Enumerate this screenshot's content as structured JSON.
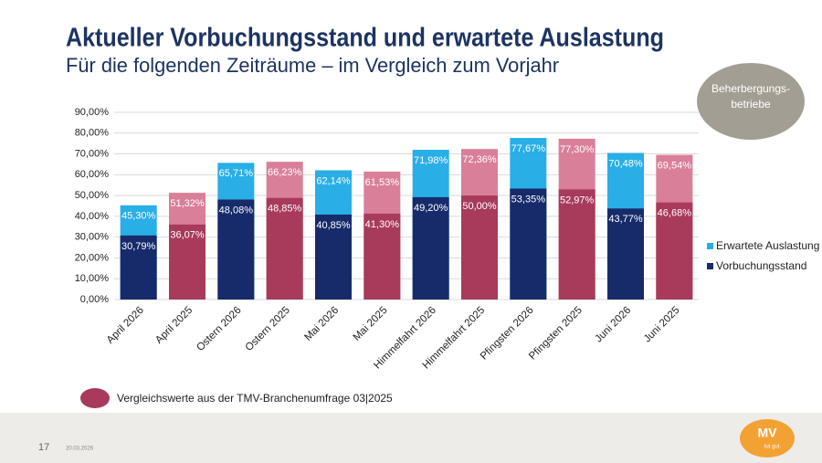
{
  "chart_data": {
    "type": "bar",
    "title": "Aktueller Vorbuchungsstand und erwartete Auslastung",
    "subtitle": "Für die folgenden Zeiträume – im Vergleich zum Vorjahr",
    "categories": [
      "April 2026",
      "April 2025",
      "Ostern 2026",
      "Ostern 2025",
      "Mai 2026",
      "Mai 2025",
      "Himmelfahrt 2026",
      "Himmelfahrt 2025",
      "Pfingsten 2026",
      "Pfingsten 2025",
      "Juni 2026",
      "Juni 2025"
    ],
    "series": [
      {
        "name": "Erwartete Auslastung",
        "color": "#29aee6",
        "colors": [
          "#29aee6",
          "#d97f9a",
          "#29aee6",
          "#d97f9a",
          "#29aee6",
          "#d97f9a",
          "#29aee6",
          "#d97f9a",
          "#29aee6",
          "#d97f9a",
          "#29aee6",
          "#d97f9a"
        ],
        "values": [
          45.3,
          51.32,
          65.71,
          66.23,
          62.14,
          61.53,
          71.98,
          72.36,
          77.67,
          77.3,
          70.48,
          69.54
        ],
        "value_labels": [
          "45,30%",
          "51,32%",
          "65,71%",
          "66,23%",
          "62,14%",
          "61,53%",
          "71,98%",
          "72,36%",
          "77,67%",
          "77,30%",
          "70,48%",
          "69,54%"
        ]
      },
      {
        "name": "Vorbuchungsstand",
        "color": "#172b6b",
        "colors": [
          "#172b6b",
          "#a83a5c",
          "#172b6b",
          "#a83a5c",
          "#172b6b",
          "#a83a5c",
          "#172b6b",
          "#a83a5c",
          "#172b6b",
          "#a83a5c",
          "#172b6b",
          "#a83a5c"
        ],
        "values": [
          30.79,
          36.07,
          48.08,
          48.85,
          40.85,
          41.3,
          49.2,
          50.0,
          53.35,
          52.97,
          43.77,
          46.68
        ],
        "value_labels": [
          "30,79%",
          "36,07%",
          "48,08%",
          "48,85%",
          "40,85%",
          "41,30%",
          "49,20%",
          "50,00%",
          "53,35%",
          "52,97%",
          "43,77%",
          "46,68%"
        ]
      }
    ],
    "ylim": [
      0,
      90
    ],
    "yticks": [
      {
        "value": 0,
        "label": "0,00%"
      },
      {
        "value": 10,
        "label": "10,00%"
      },
      {
        "value": 20,
        "label": "20,00%"
      },
      {
        "value": 30,
        "label": "30,00%"
      },
      {
        "value": 40,
        "label": "40,00%"
      },
      {
        "value": 50,
        "label": "50,00%"
      },
      {
        "value": 60,
        "label": "60,00%"
      },
      {
        "value": 70,
        "label": "70,00%"
      },
      {
        "value": 80,
        "label": "80,00%"
      },
      {
        "value": 90,
        "label": "90,00%"
      }
    ],
    "grid": true,
    "legend": "right",
    "badge": [
      "Beherbergungs-",
      "betriebe"
    ],
    "note": {
      "text": "Vergleichswerte aus der TMV-Branchenumfrage 03|2025",
      "color": "#a83a5c"
    }
  },
  "footer": {
    "page": "17",
    "date": "20.03.2026",
    "logo": [
      "MV",
      "tut gut."
    ]
  }
}
